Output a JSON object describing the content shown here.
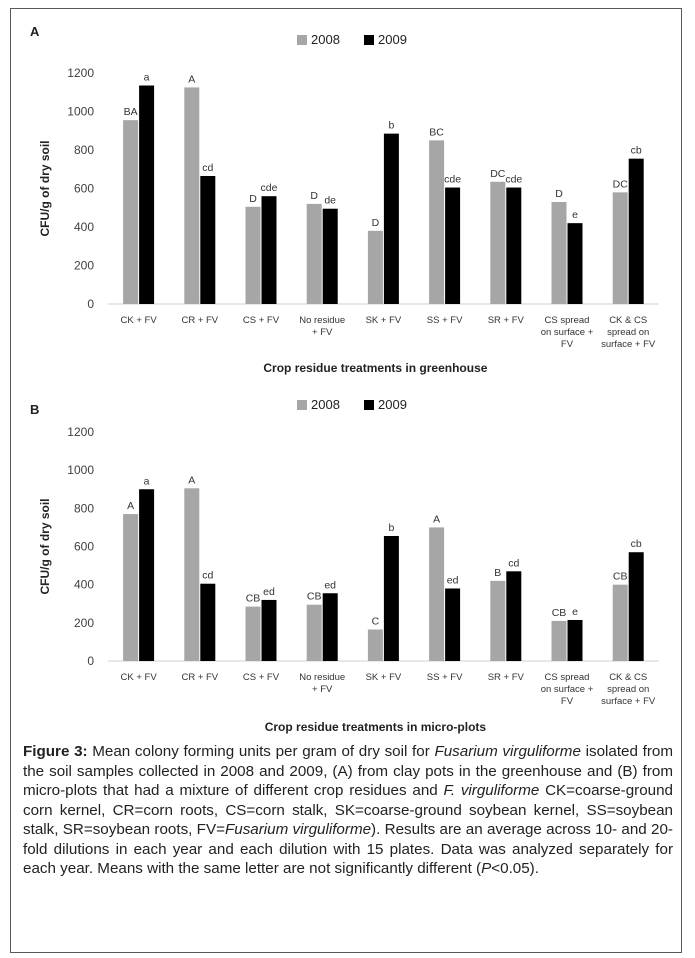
{
  "legend_labels": [
    "2008",
    "2009"
  ],
  "colors": {
    "2008": "#a6a6a6",
    "2009": "#000000",
    "axis": "#d0d0d0",
    "text": "#404040"
  },
  "chart_data": [
    {
      "type": "bar",
      "panel_label": "A",
      "categories": [
        [
          "CK + FV"
        ],
        [
          "CR + FV"
        ],
        [
          "CS + FV"
        ],
        [
          "No residue",
          "+ FV"
        ],
        [
          "SK + FV"
        ],
        [
          "SS + FV"
        ],
        [
          "SR + FV"
        ],
        [
          "CS spread",
          "on surface +",
          "FV"
        ],
        [
          "CK & CS",
          "spread on",
          "surface + FV"
        ]
      ],
      "series": [
        {
          "name": "2008",
          "values": [
            955,
            1125,
            505,
            520,
            380,
            850,
            635,
            530,
            580
          ],
          "labels": [
            "BA",
            "A",
            "D",
            "D",
            "D",
            "BC",
            "DC",
            "D",
            "DC"
          ]
        },
        {
          "name": "2009",
          "values": [
            1135,
            665,
            560,
            495,
            885,
            605,
            605,
            420,
            755
          ],
          "labels": [
            "a",
            "cd",
            "cde",
            "de",
            "b",
            "cde",
            "cde",
            "e",
            "cb"
          ]
        }
      ],
      "ylabel": "CFU/g of dry soil",
      "xlabel": "Crop residue treatments in greenhouse",
      "ylim": [
        0,
        1200
      ],
      "yticks": [
        "0",
        "200",
        "400",
        "600",
        "800",
        "1000",
        "1200"
      ],
      "legend": "top-center",
      "grid": false
    },
    {
      "type": "bar",
      "panel_label": "B",
      "categories": [
        [
          "CK + FV"
        ],
        [
          "CR + FV"
        ],
        [
          "CS + FV"
        ],
        [
          "No residue",
          "+ FV"
        ],
        [
          "SK + FV"
        ],
        [
          "SS + FV"
        ],
        [
          "SR + FV"
        ],
        [
          "CS spread",
          "on surface +",
          "FV"
        ],
        [
          "CK & CS",
          "spread on",
          "surface + FV"
        ]
      ],
      "series": [
        {
          "name": "2008",
          "values": [
            770,
            905,
            285,
            295,
            165,
            700,
            420,
            210,
            400
          ],
          "labels": [
            "A",
            "A",
            "CB",
            "CB",
            "C",
            "A",
            "B",
            "CB",
            "CB"
          ]
        },
        {
          "name": "2009",
          "values": [
            900,
            405,
            320,
            355,
            655,
            380,
            470,
            215,
            570
          ],
          "labels": [
            "a",
            "cd",
            "ed",
            "ed",
            "b",
            "ed",
            "cd",
            "e",
            "cb"
          ]
        }
      ],
      "ylabel": "CFU/g of dry soil",
      "xlabel": "Crop residue treatments in micro-plots",
      "ylim": [
        0,
        1200
      ],
      "yticks": [
        "0",
        "200",
        "400",
        "600",
        "800",
        "1000",
        "1200"
      ],
      "legend": "top-center",
      "grid": false
    }
  ],
  "caption": {
    "label": "Figure 3:",
    "segments": [
      {
        "t": " Mean colony forming units per gram of dry soil for ",
        "i": false
      },
      {
        "t": "Fusarium virguliforme",
        "i": true
      },
      {
        "t": " isolated from the soil samples collected in 2008 and 2009, (A) from clay pots in the greenhouse and (B) from micro-plots that had a mixture of different crop residues and ",
        "i": false
      },
      {
        "t": "F. virguliforme",
        "i": true
      },
      {
        "t": " CK=coarse-ground corn kernel, CR=corn roots, CS=corn stalk, SK=coarse-ground soybean kernel, SS=soybean stalk, SR=soybean roots, FV=",
        "i": false
      },
      {
        "t": "Fusarium virguliforme",
        "i": true
      },
      {
        "t": "). Results are an average across 10- and 20-fold dilutions in each year and each dilution with 15 plates. Data was analyzed separately for each year. Means with the same letter are not significantly different (",
        "i": false
      },
      {
        "t": "P",
        "i": true
      },
      {
        "t": "<0.05).",
        "i": false
      }
    ]
  }
}
